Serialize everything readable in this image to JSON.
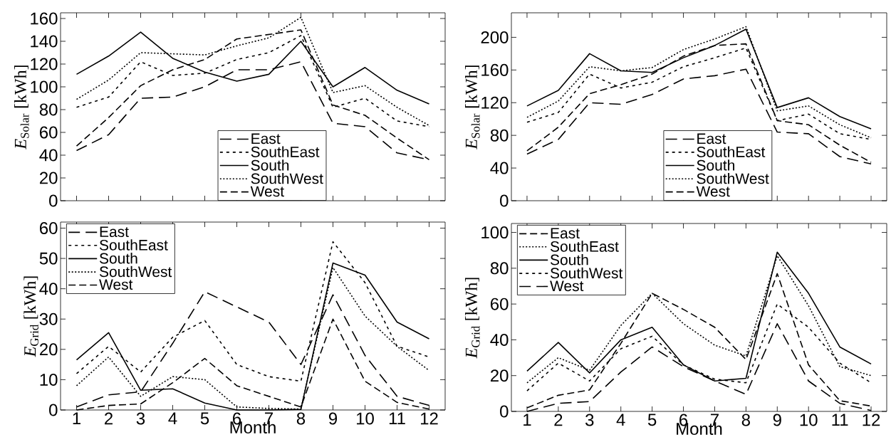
{
  "chart_data": [
    {
      "type": "line",
      "ylabel": "*E*$_{Solar}$ [kWh]",
      "x": [
        1,
        2,
        3,
        4,
        5,
        6,
        7,
        8,
        9,
        10,
        11,
        12
      ],
      "xlim": [
        0.5,
        12.5
      ],
      "xticks": [
        1,
        2,
        3,
        4,
        5,
        6,
        7,
        8,
        9,
        10,
        11,
        12
      ],
      "ylim": [
        0,
        165
      ],
      "yticks": [
        0,
        20,
        40,
        60,
        80,
        100,
        120,
        140,
        160
      ],
      "tick_labels": "y",
      "legend": "bottom",
      "marker": "none",
      "series": [
        {
          "name": "East",
          "color": "#000000",
          "line_style": "long dashed",
          "values": [
            44,
            58,
            90,
            91,
            100,
            115,
            115,
            122,
            68,
            65,
            42,
            36
          ]
        },
        {
          "name": "SouthEast",
          "color": "#000000",
          "line_style": "loosely dashed",
          "values": [
            82,
            91,
            122,
            110,
            112,
            124,
            130,
            145,
            82,
            90,
            70,
            65
          ]
        },
        {
          "name": "South",
          "color": "#000000",
          "line_style": "solid",
          "values": [
            111,
            127,
            148,
            125,
            113,
            105,
            111,
            140,
            100,
            117,
            97,
            85
          ]
        },
        {
          "name": "SouthWest",
          "color": "#000000",
          "line_style": "dotted",
          "values": [
            89,
            106,
            130,
            129,
            128,
            136,
            143,
            161,
            95,
            101,
            82,
            66
          ]
        },
        {
          "name": "West",
          "color": "#000000",
          "line_style": "dashed",
          "values": [
            48,
            73,
            101,
            115,
            124,
            142,
            146,
            150,
            84,
            75,
            55,
            36
          ]
        }
      ]
    },
    {
      "type": "line",
      "ylabel": "*E*$_{Solar}$ [kWh]",
      "x": [
        1,
        2,
        3,
        4,
        5,
        6,
        7,
        8,
        9,
        10,
        11,
        12
      ],
      "xlim": [
        0.5,
        12.5
      ],
      "xticks": [
        1,
        2,
        3,
        4,
        5,
        6,
        7,
        8,
        9,
        10,
        11,
        12
      ],
      "ylim": [
        0,
        230
      ],
      "yticks": [
        0,
        40,
        80,
        120,
        160,
        200
      ],
      "tick_labels": "y",
      "legend": "bottom",
      "marker": "none",
      "series": [
        {
          "name": "East",
          "color": "#000000",
          "line_style": "long dashed",
          "values": [
            57,
            75,
            120,
            118,
            130,
            149,
            153,
            161,
            84,
            82,
            54,
            45
          ]
        },
        {
          "name": "SouthEast",
          "color": "#000000",
          "line_style": "loosely dashed",
          "values": [
            96,
            108,
            155,
            138,
            145,
            164,
            175,
            187,
            98,
            106,
            82,
            75
          ]
        },
        {
          "name": "South",
          "color": "#000000",
          "line_style": "solid",
          "values": [
            116,
            135,
            180,
            159,
            157,
            175,
            190,
            210,
            114,
            126,
            103,
            88
          ]
        },
        {
          "name": "SouthWest",
          "color": "#000000",
          "line_style": "dotted",
          "values": [
            102,
            122,
            164,
            159,
            163,
            185,
            198,
            213,
            110,
            116,
            93,
            77
          ]
        },
        {
          "name": "West",
          "color": "#000000",
          "line_style": "dashed",
          "values": [
            61,
            90,
            131,
            142,
            155,
            177,
            190,
            192,
            98,
            93,
            68,
            47
          ]
        }
      ]
    },
    {
      "type": "line",
      "ylabel": "*E*$_{Grid}$ [kWh]",
      "xlabel": "Month",
      "x": [
        1,
        2,
        3,
        4,
        5,
        6,
        7,
        8,
        9,
        10,
        11,
        12
      ],
      "xlim": [
        0.5,
        12.5
      ],
      "xticks": [
        1,
        2,
        3,
        4,
        5,
        6,
        7,
        8,
        9,
        10,
        11,
        12
      ],
      "ylim": [
        0,
        62
      ],
      "yticks": [
        0,
        10,
        20,
        30,
        40,
        50,
        60
      ],
      "legend": "top left",
      "marker": "none",
      "series": [
        {
          "name": "East",
          "color": "#000000",
          "line_style": "long dashed",
          "values": [
            1,
            5,
            6,
            22,
            39,
            34,
            29,
            15,
            38,
            18,
            4.5,
            1.5
          ]
        },
        {
          "name": "SouthEast",
          "color": "#000000",
          "line_style": "loosely dashed",
          "values": [
            12,
            21,
            12.5,
            24,
            29.5,
            15,
            11,
            9.5,
            55.5,
            42,
            21,
            17.5
          ]
        },
        {
          "name": "South",
          "color": "#000000",
          "line_style": "solid",
          "values": [
            16.5,
            25.5,
            6.5,
            7,
            2.3,
            0,
            0,
            0.2,
            48.5,
            44.5,
            29,
            23.5
          ]
        },
        {
          "name": "SouthWest",
          "color": "#000000",
          "line_style": "dotted",
          "values": [
            8,
            17.5,
            4.5,
            11,
            10,
            1,
            0.5,
            0.3,
            47,
            31,
            21,
            13
          ]
        },
        {
          "name": "West",
          "color": "#000000",
          "line_style": "dashed",
          "values": [
            0,
            1.5,
            2,
            9,
            17,
            8,
            4.5,
            1,
            30,
            9.5,
            2.5,
            0.3
          ]
        }
      ]
    },
    {
      "type": "line",
      "ylabel": "*E*$_{Grid}$ [kWh]",
      "xlabel": "Month",
      "x": [
        1,
        2,
        3,
        4,
        5,
        6,
        7,
        8,
        9,
        10,
        11,
        12
      ],
      "xlim": [
        0.5,
        12.5
      ],
      "xticks": [
        1,
        2,
        3,
        4,
        5,
        6,
        7,
        8,
        9,
        10,
        11,
        12
      ],
      "ylim": [
        0,
        105
      ],
      "yticks": [
        0,
        20,
        40,
        60,
        80,
        100
      ],
      "legend": "top left",
      "marker": "none",
      "series": [
        {
          "name": "East",
          "color": "#000000",
          "line_style": "dashed",
          "values": [
            2,
            9,
            12,
            38,
            66,
            57,
            47,
            29,
            77,
            26,
            6,
            3
          ]
        },
        {
          "name": "SouthEast",
          "color": "#000000",
          "line_style": "dotted",
          "values": [
            16,
            30,
            23,
            48,
            66,
            49,
            37,
            31,
            87,
            59,
            25,
            20
          ]
        },
        {
          "name": "South",
          "color": "#000000",
          "line_style": "solid",
          "values": [
            22.5,
            38.5,
            21.5,
            40,
            47,
            26,
            17,
            18.5,
            89,
            66,
            36,
            26.5
          ]
        },
        {
          "name": "SouthWest",
          "color": "#000000",
          "line_style": "loosely dashed",
          "values": [
            11.5,
            27,
            17,
            35,
            42,
            26,
            18,
            16,
            60,
            47,
            27,
            16
          ]
        },
        {
          "name": "West",
          "color": "#000000",
          "line_style": "long dashed",
          "values": [
            0,
            4.5,
            5.5,
            22,
            36,
            25,
            17,
            9.5,
            49,
            17,
            4.5,
            0.5
          ]
        }
      ]
    }
  ]
}
